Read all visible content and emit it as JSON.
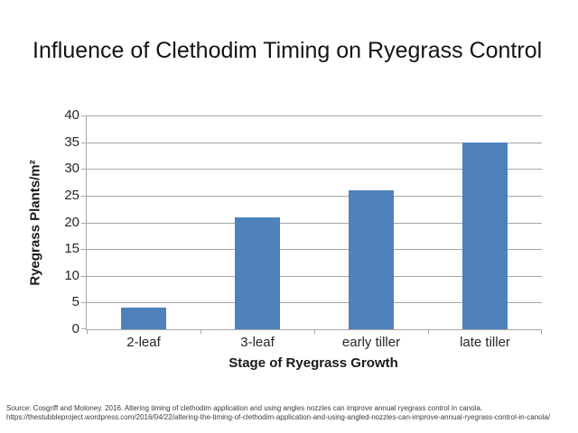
{
  "title": "Influence of Clethodim Timing on Ryegrass Control",
  "chart_data": {
    "type": "bar",
    "categories": [
      "2-leaf",
      "3-leaf",
      "early tiller",
      "late tiller"
    ],
    "values": [
      4,
      21,
      26,
      35
    ],
    "title": "Influence of Clethodim Timing on Ryegrass Control",
    "xlabel": "Stage of Ryegrass Growth",
    "ylabel": "Ryegrass Plants/m²",
    "ylim": [
      0,
      40
    ],
    "ytick_step": 5,
    "grid": true,
    "legend": false,
    "bar_gap_ratio": 1.5,
    "colors": {
      "bar": "#4f81bd",
      "gridline": "#a6a6a6",
      "axis": "#a6a6a6",
      "tick_text": "#262626"
    }
  },
  "footer": {
    "source_line": "Source:  Cosgriff and Moloney.  2016.  Altering timing of clethodim application and using angles nozzles can improve annual ryegrass control in canola.",
    "url_line": "https://thestubbleproject.wordpress.com/2016/04/22/altering-the-timing-of-clethodim-application-and-using-angled-nozzles-can-improve-annual-ryegrass-control-in-canola/"
  }
}
